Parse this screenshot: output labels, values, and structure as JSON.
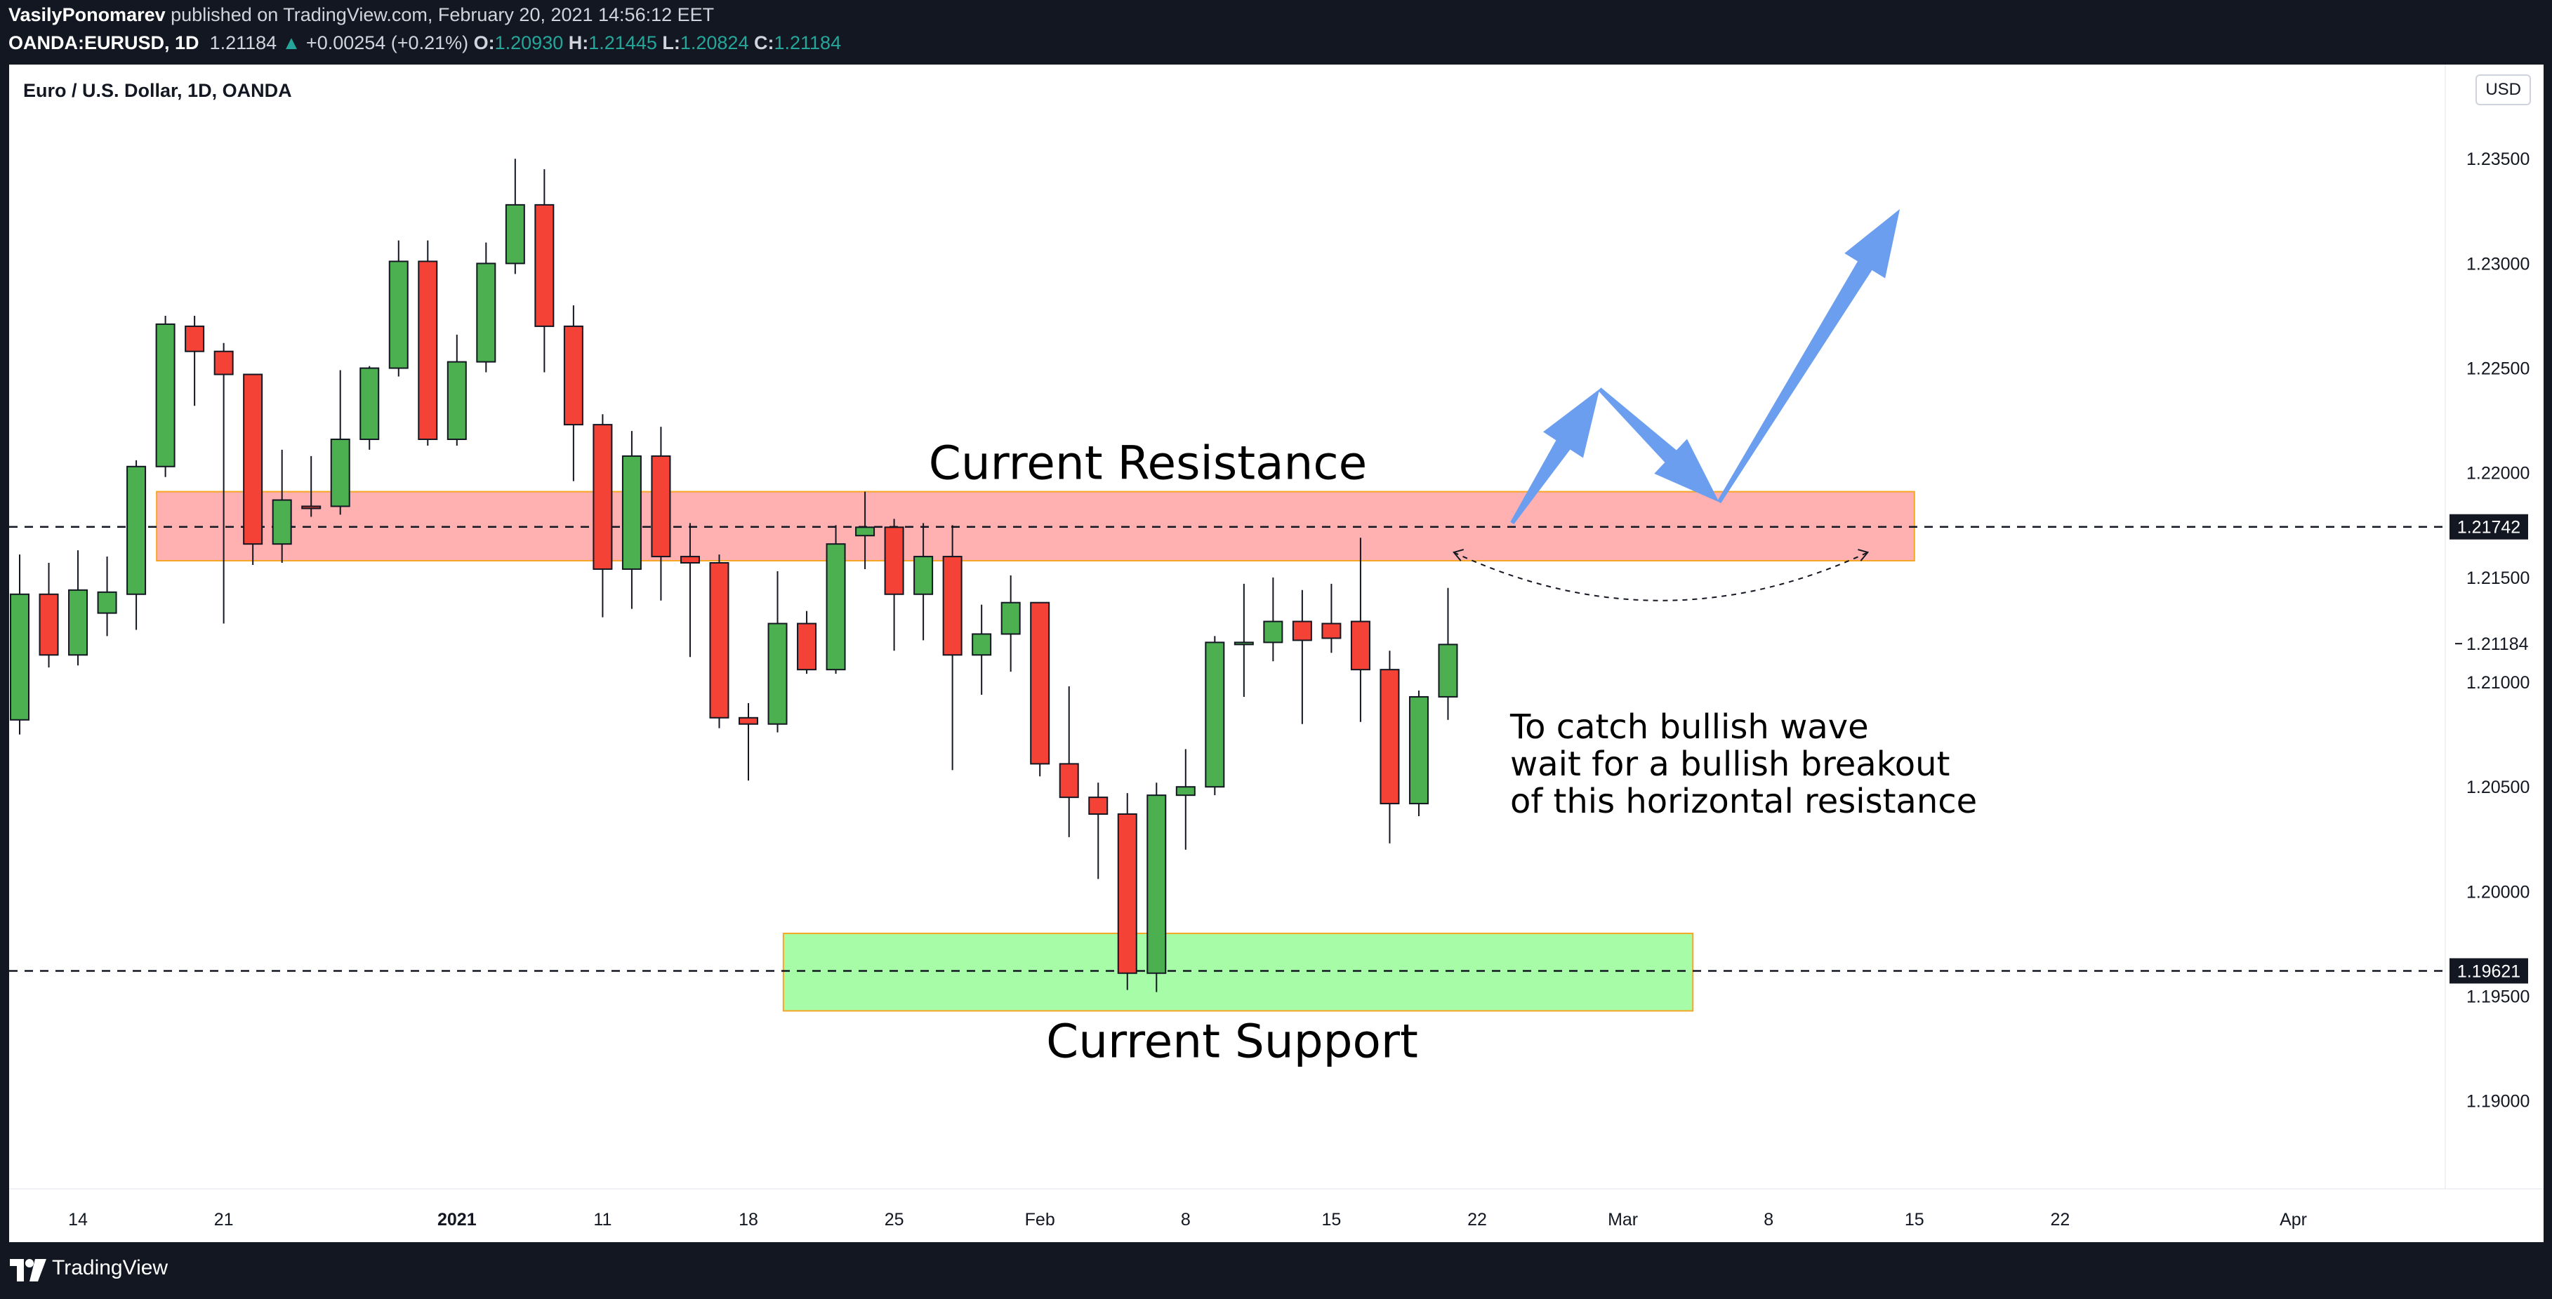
{
  "header": {
    "author": "VasilyPonomarev",
    "published": "published on TradingView.com, February 20, 2021 14:56:12 EET",
    "symbol": "OANDA:EURUSD, 1D",
    "last": "1.21184",
    "change": "+0.00254 (+0.21%)",
    "o_label": "O:",
    "o_value": "1.20930",
    "h_label": "H:",
    "h_value": "1.21445",
    "l_label": "L:",
    "l_value": "1.20824",
    "c_label": "C:",
    "c_value": "1.21184"
  },
  "footer": {
    "brand": "TradingView"
  },
  "colors": {
    "up": "#4caf50",
    "down": "#f44336",
    "resistance": "#ff8a8a",
    "support": "#7dfc7d",
    "arrow": "#6c9ef0",
    "pane": "#131722"
  },
  "chart_data": {
    "type": "candlestick",
    "title": "Euro / U.S. Dollar, 1D, OANDA",
    "currency": "USD",
    "ylim": [
      1.1858,
      1.2395
    ],
    "y_ticks": [
      "1.23500",
      "1.23000",
      "1.22500",
      "1.22000",
      "1.21500",
      "1.21000",
      "1.20500",
      "1.20000",
      "1.19500",
      "1.19000"
    ],
    "x_ticks": [
      {
        "label": "14",
        "idx": 2,
        "bold": false
      },
      {
        "label": "21",
        "idx": 7,
        "bold": false
      },
      {
        "label": "2021",
        "idx": 15,
        "bold": true
      },
      {
        "label": "11",
        "idx": 20,
        "bold": false
      },
      {
        "label": "18",
        "idx": 25,
        "bold": false
      },
      {
        "label": "25",
        "idx": 30,
        "bold": false
      },
      {
        "label": "Feb",
        "idx": 35,
        "bold": false
      },
      {
        "label": "8",
        "idx": 40,
        "bold": false
      },
      {
        "label": "15",
        "idx": 45,
        "bold": false
      },
      {
        "label": "22",
        "idx": 50,
        "bold": false
      },
      {
        "label": "Mar",
        "idx": 55,
        "bold": false
      },
      {
        "label": "8",
        "idx": 60,
        "bold": false
      },
      {
        "label": "15",
        "idx": 65,
        "bold": false
      },
      {
        "label": "22",
        "idx": 70,
        "bold": false
      },
      {
        "label": "Apr",
        "idx": 78,
        "bold": false
      }
    ],
    "candles": [
      {
        "o": 1.2082,
        "h": 1.2161,
        "l": 1.2075,
        "c": 1.2142
      },
      {
        "o": 1.2142,
        "h": 1.2157,
        "l": 1.2107,
        "c": 1.2113
      },
      {
        "o": 1.2113,
        "h": 1.2163,
        "l": 1.2108,
        "c": 1.2144
      },
      {
        "o": 1.2133,
        "h": 1.216,
        "l": 1.2122,
        "c": 1.2143
      },
      {
        "o": 1.2142,
        "h": 1.2206,
        "l": 1.2125,
        "c": 1.2203
      },
      {
        "o": 1.2203,
        "h": 1.2275,
        "l": 1.2198,
        "c": 1.2271
      },
      {
        "o": 1.227,
        "h": 1.2275,
        "l": 1.2232,
        "c": 1.2258
      },
      {
        "o": 1.2258,
        "h": 1.2262,
        "l": 1.2128,
        "c": 1.2247
      },
      {
        "o": 1.2247,
        "h": 1.2247,
        "l": 1.2156,
        "c": 1.2166
      },
      {
        "o": 1.2166,
        "h": 1.2211,
        "l": 1.2157,
        "c": 1.2187
      },
      {
        "o": 1.2184,
        "h": 1.2208,
        "l": 1.2179,
        "c": 1.2183
      },
      {
        "o": 1.2184,
        "h": 1.2249,
        "l": 1.218,
        "c": 1.2216
      },
      {
        "o": 1.2216,
        "h": 1.2251,
        "l": 1.2211,
        "c": 1.225
      },
      {
        "o": 1.225,
        "h": 1.2311,
        "l": 1.2246,
        "c": 1.2301
      },
      {
        "o": 1.2301,
        "h": 1.2311,
        "l": 1.2213,
        "c": 1.2216
      },
      {
        "o": 1.2216,
        "h": 1.2266,
        "l": 1.2213,
        "c": 1.2253
      },
      {
        "o": 1.2253,
        "h": 1.231,
        "l": 1.2248,
        "c": 1.23
      },
      {
        "o": 1.23,
        "h": 1.235,
        "l": 1.2295,
        "c": 1.2328
      },
      {
        "o": 1.2328,
        "h": 1.2345,
        "l": 1.2248,
        "c": 1.227
      },
      {
        "o": 1.227,
        "h": 1.228,
        "l": 1.2196,
        "c": 1.2223
      },
      {
        "o": 1.2223,
        "h": 1.2228,
        "l": 1.2131,
        "c": 1.2154
      },
      {
        "o": 1.2154,
        "h": 1.222,
        "l": 1.2135,
        "c": 1.2208
      },
      {
        "o": 1.2208,
        "h": 1.2222,
        "l": 1.2139,
        "c": 1.216
      },
      {
        "o": 1.216,
        "h": 1.2176,
        "l": 1.2112,
        "c": 1.2157
      },
      {
        "o": 1.2157,
        "h": 1.2161,
        "l": 1.2078,
        "c": 1.2083
      },
      {
        "o": 1.2083,
        "h": 1.209,
        "l": 1.2053,
        "c": 1.208
      },
      {
        "o": 1.208,
        "h": 1.2153,
        "l": 1.2076,
        "c": 1.2128
      },
      {
        "o": 1.2128,
        "h": 1.2134,
        "l": 1.2104,
        "c": 1.2106
      },
      {
        "o": 1.2106,
        "h": 1.2175,
        "l": 1.2104,
        "c": 1.2166
      },
      {
        "o": 1.217,
        "h": 1.2191,
        "l": 1.2154,
        "c": 1.2174
      },
      {
        "o": 1.2174,
        "h": 1.2178,
        "l": 1.2115,
        "c": 1.2142
      },
      {
        "o": 1.2142,
        "h": 1.2176,
        "l": 1.212,
        "c": 1.216
      },
      {
        "o": 1.216,
        "h": 1.2175,
        "l": 1.2058,
        "c": 1.2113
      },
      {
        "o": 1.2113,
        "h": 1.2137,
        "l": 1.2094,
        "c": 1.2123
      },
      {
        "o": 1.2123,
        "h": 1.2151,
        "l": 1.2105,
        "c": 1.2138
      },
      {
        "o": 1.2138,
        "h": 1.2138,
        "l": 1.2055,
        "c": 1.2061
      },
      {
        "o": 1.2061,
        "h": 1.2098,
        "l": 1.2026,
        "c": 1.2045
      },
      {
        "o": 1.2045,
        "h": 1.2052,
        "l": 1.2006,
        "c": 1.2037
      },
      {
        "o": 1.2037,
        "h": 1.2047,
        "l": 1.1953,
        "c": 1.1961
      },
      {
        "o": 1.1961,
        "h": 1.2052,
        "l": 1.1952,
        "c": 1.2046
      },
      {
        "o": 1.2046,
        "h": 1.2068,
        "l": 1.202,
        "c": 1.205
      },
      {
        "o": 1.205,
        "h": 1.2122,
        "l": 1.2046,
        "c": 1.2119
      },
      {
        "o": 1.2119,
        "h": 1.2147,
        "l": 1.2093,
        "c": 1.2119
      },
      {
        "o": 1.2119,
        "h": 1.215,
        "l": 1.211,
        "c": 1.2129
      },
      {
        "o": 1.2129,
        "h": 1.2144,
        "l": 1.208,
        "c": 1.212
      },
      {
        "o": 1.2128,
        "h": 1.2147,
        "l": 1.2114,
        "c": 1.2121
      },
      {
        "o": 1.2129,
        "h": 1.2169,
        "l": 1.2081,
        "c": 1.2106
      },
      {
        "o": 1.2106,
        "h": 1.2115,
        "l": 1.2023,
        "c": 1.2042
      },
      {
        "o": 1.2042,
        "h": 1.2096,
        "l": 1.2036,
        "c": 1.2093
      },
      {
        "o": 1.2093,
        "h": 1.2145,
        "l": 1.2082,
        "c": 1.2118
      }
    ],
    "levels": [
      {
        "name": "resistance-line",
        "value": 1.21742,
        "label": "1.21742"
      },
      {
        "name": "support-line",
        "value": 1.19621,
        "label": "1.19621"
      }
    ],
    "last_price": {
      "value": 1.21184,
      "label": "1.21184"
    },
    "zones": [
      {
        "name": "resistance-zone",
        "from_idx": 4.7,
        "to_idx": 65,
        "low": 1.2158,
        "high": 1.2191,
        "label": "Current Resistance"
      },
      {
        "name": "support-zone",
        "from_idx": 26.2,
        "to_idx": 57.4,
        "low": 1.1943,
        "high": 1.198,
        "label": "Current Support"
      }
    ],
    "annotation": {
      "lines": [
        "To catch bullish wave",
        "wait for a bullish breakout",
        "of this horizontal resistance"
      ]
    },
    "projection": [
      {
        "idx": 51.2,
        "price": 1.2176
      },
      {
        "idx": 54.2,
        "price": 1.224
      },
      {
        "idx": 58.3,
        "price": 1.2186
      },
      {
        "idx": 64.5,
        "price": 1.2326
      }
    ],
    "dashed_arc": {
      "from_idx": 49.2,
      "to_idx": 63.4,
      "price": 1.2162,
      "dip": 1.2139
    }
  }
}
